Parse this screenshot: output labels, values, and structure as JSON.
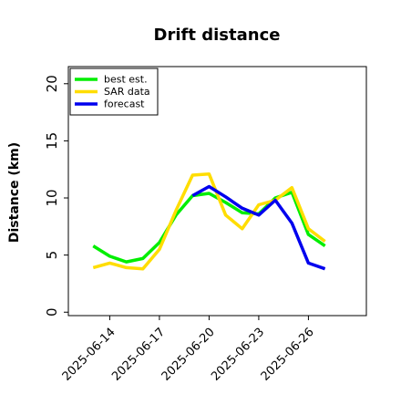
{
  "chart_data": {
    "type": "line",
    "title": "Drift distance",
    "xlabel": "",
    "ylabel": "Distance (km)",
    "ylim": [
      -0.3,
      21.5
    ],
    "xlim": [
      "2025-06-11T12:00",
      "2025-06-29T12:00"
    ],
    "yticks": [
      0,
      5,
      10,
      15,
      20
    ],
    "xticks": [
      "2025-06-14",
      "2025-06-17",
      "2025-06-20",
      "2025-06-23",
      "2025-06-26"
    ],
    "grid": false,
    "legend_position": "top-left",
    "series": [
      {
        "name": "best est.",
        "color": "#00ee00",
        "x": [
          "2025-06-13T00:00",
          "2025-06-14T00:00",
          "2025-06-15T00:00",
          "2025-06-16T00:00",
          "2025-06-17T00:00",
          "2025-06-18T00:00",
          "2025-06-19T00:00",
          "2025-06-20T00:00",
          "2025-06-21T00:00",
          "2025-06-22T00:00",
          "2025-06-23T00:00",
          "2025-06-24T00:00",
          "2025-06-25T00:00",
          "2025-06-26T00:00",
          "2025-06-27T00:00"
        ],
        "values": [
          5.8,
          4.9,
          4.4,
          4.7,
          6.1,
          8.5,
          10.2,
          10.4,
          9.6,
          8.7,
          8.6,
          10.0,
          10.5,
          6.8,
          5.8
        ]
      },
      {
        "name": "SAR data",
        "color": "#ffdd00",
        "x": [
          "2025-06-13T00:00",
          "2025-06-14T00:00",
          "2025-06-15T00:00",
          "2025-06-16T00:00",
          "2025-06-17T00:00",
          "2025-06-18T00:00",
          "2025-06-19T00:00",
          "2025-06-20T00:00",
          "2025-06-21T00:00",
          "2025-06-22T00:00",
          "2025-06-23T00:00",
          "2025-06-24T00:00",
          "2025-06-25T00:00",
          "2025-06-26T00:00",
          "2025-06-27T00:00"
        ],
        "values": [
          3.9,
          4.3,
          3.9,
          3.8,
          5.5,
          8.9,
          12.0,
          12.1,
          8.5,
          7.3,
          9.4,
          9.8,
          10.9,
          7.3,
          6.2
        ]
      },
      {
        "name": "forecast",
        "color": "#0000ee",
        "x": [
          "2025-06-19T00:00",
          "2025-06-20T00:00",
          "2025-06-21T00:00",
          "2025-06-22T00:00",
          "2025-06-23T00:00",
          "2025-06-24T00:00",
          "2025-06-25T00:00",
          "2025-06-26T00:00",
          "2025-06-27T00:00"
        ],
        "values": [
          10.2,
          11.0,
          10.1,
          9.1,
          8.5,
          9.8,
          7.8,
          4.3,
          3.8
        ]
      }
    ]
  }
}
